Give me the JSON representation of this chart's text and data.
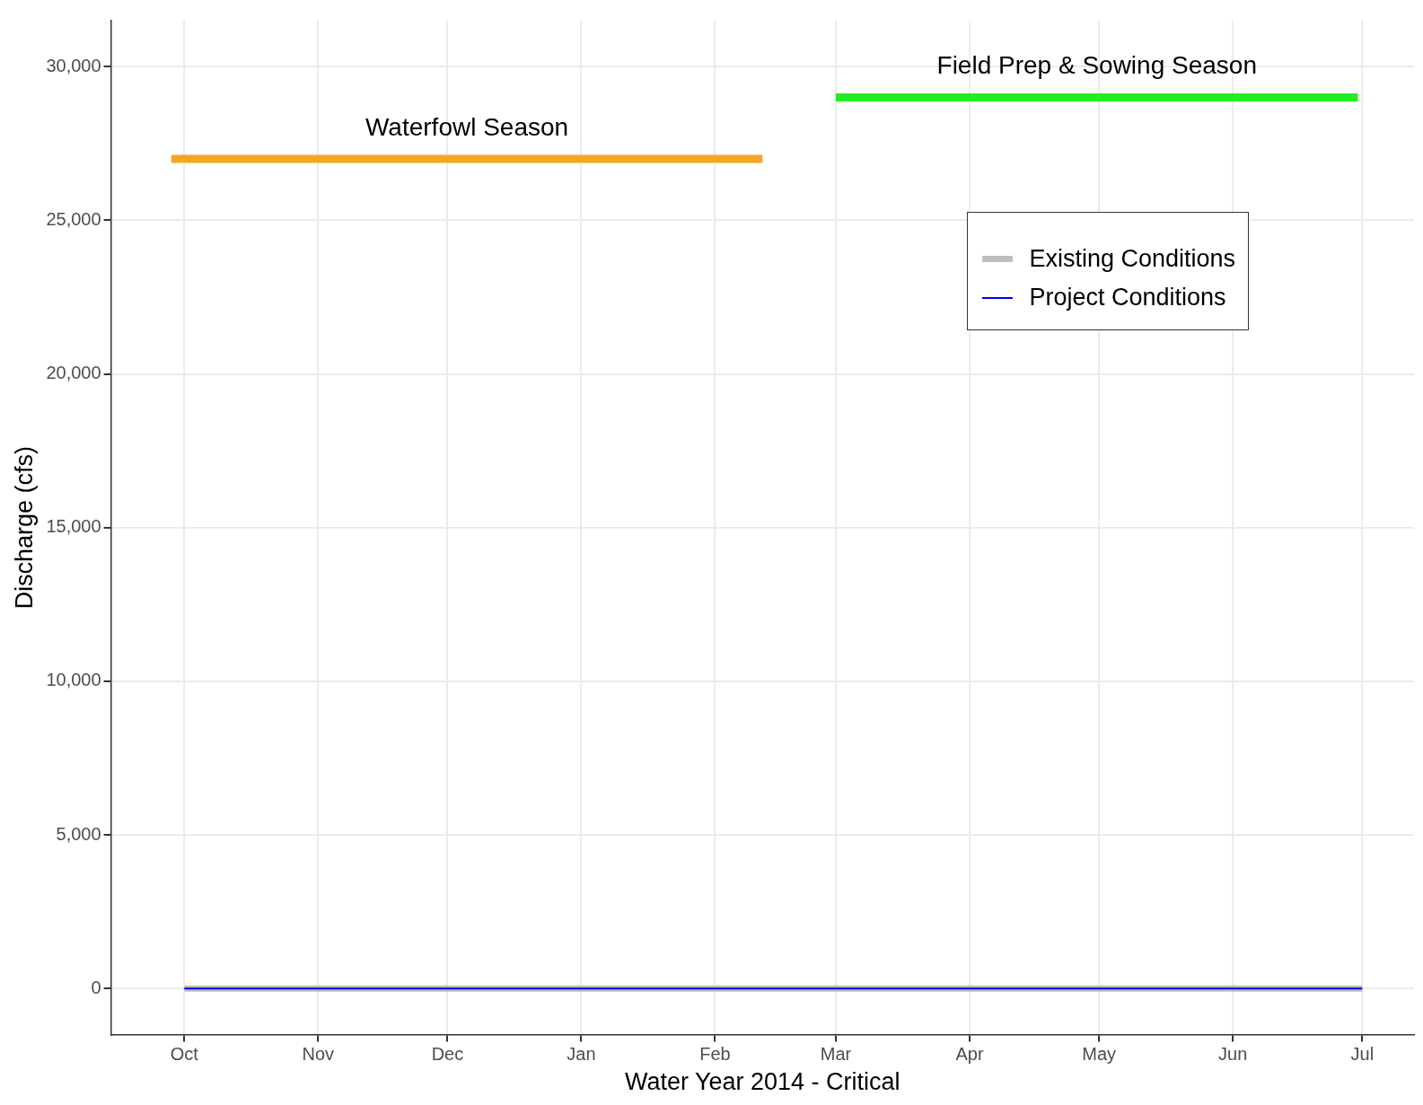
{
  "chart_data": {
    "type": "line",
    "xlabel": "Water Year 2014 - Critical",
    "ylabel": "Discharge (cfs)",
    "xlim": [
      "2013-09-14",
      "2014-07-13"
    ],
    "xticks": [
      {
        "value": "2013-10-01",
        "label": "Oct"
      },
      {
        "value": "2013-11-01",
        "label": "Nov"
      },
      {
        "value": "2013-12-01",
        "label": "Dec"
      },
      {
        "value": "2014-01-01",
        "label": "Jan"
      },
      {
        "value": "2014-02-01",
        "label": "Feb"
      },
      {
        "value": "2014-03-01",
        "label": "Mar"
      },
      {
        "value": "2014-04-01",
        "label": "Apr"
      },
      {
        "value": "2014-05-01",
        "label": "May"
      },
      {
        "value": "2014-06-01",
        "label": "Jun"
      },
      {
        "value": "2014-07-01",
        "label": "Jul"
      }
    ],
    "ylim": [
      -1500,
      31500
    ],
    "yticks": [
      {
        "value": 0,
        "label": "0"
      },
      {
        "value": 5000,
        "label": "5,000"
      },
      {
        "value": 10000,
        "label": "10,000"
      },
      {
        "value": 15000,
        "label": "15,000"
      },
      {
        "value": 20000,
        "label": "20,000"
      },
      {
        "value": 25000,
        "label": "25,000"
      },
      {
        "value": 30000,
        "label": "30,000"
      }
    ],
    "grid": true,
    "legend": "top right",
    "marker": "none",
    "line_style": "solid",
    "series": [
      {
        "name": "Existing Conditions",
        "color": "#bebebe",
        "x": [
          "2013-10-01",
          "2014-07-01"
        ],
        "values": [
          0,
          0
        ]
      },
      {
        "name": "Project Conditions",
        "color": "#0000ff",
        "x": [
          "2013-10-01",
          "2014-07-01"
        ],
        "values": [
          0,
          0
        ]
      },
      {
        "color": "#f5a623",
        "x": [
          "2013-09-28",
          "2014-02-12"
        ],
        "values": [
          27000,
          27000
        ]
      },
      {
        "color": "#22ee22",
        "x": [
          "2014-03-01",
          "2014-06-30"
        ],
        "values": [
          29000,
          29000
        ]
      }
    ],
    "annotations": [
      "Waterfowl Season",
      "Field Prep & Sowing Season"
    ]
  }
}
